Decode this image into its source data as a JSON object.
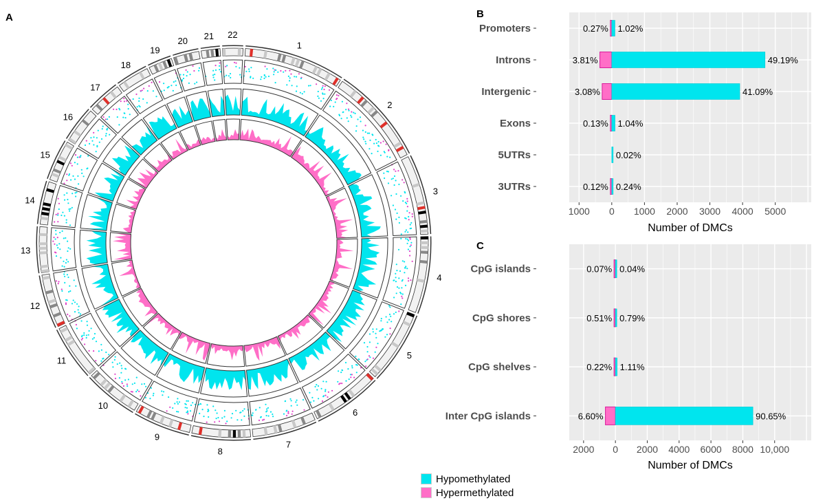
{
  "panel_labels": {
    "a": "A",
    "b": "B",
    "c": "C"
  },
  "colors": {
    "hypo": "#00e5ee",
    "hyper": "#ff6ec7",
    "hyper_dark": "#d81b9a",
    "panel_bg": "#ebebeb",
    "grid": "#ffffff"
  },
  "legend": [
    {
      "label": "Hypomethylated",
      "color": "#00e5ee"
    },
    {
      "label": "Hypermethylated",
      "color": "#ff6ec7"
    }
  ],
  "circos": {
    "chromosomes": [
      "1",
      "2",
      "3",
      "4",
      "5",
      "6",
      "7",
      "8",
      "9",
      "10",
      "11",
      "12",
      "13",
      "14",
      "15",
      "16",
      "17",
      "18",
      "19",
      "20",
      "21",
      "22"
    ],
    "sizes_mb": [
      249,
      243,
      198,
      191,
      182,
      171,
      159,
      146,
      141,
      136,
      135,
      133,
      114,
      107,
      102,
      90,
      83,
      80,
      59,
      64,
      47,
      51
    ]
  },
  "chart_data": [
    {
      "type": "bar",
      "orientation": "horizontal",
      "panel": "B",
      "categories": [
        "Promoters",
        "Introns",
        "Intergenic",
        "Exons",
        "5UTRs",
        "3UTRs"
      ],
      "xlabel": "Number of DMCs",
      "xticks": [
        "1000",
        "0",
        "1000",
        "2000",
        "3000",
        "4000",
        "5000"
      ],
      "xlim": [
        -1300,
        6100
      ],
      "series": [
        {
          "name": "Hypermethylated",
          "values": [
            26,
            363,
            293,
            12,
            0,
            11
          ],
          "labels": [
            "0.27%",
            "3.81%",
            "3.08%",
            "0.13%",
            "",
            "0.12%"
          ]
        },
        {
          "name": "Hypomethylated",
          "values": [
            97,
            4686,
            3914,
            99,
            2,
            23
          ],
          "labels": [
            "1.02%",
            "49.19%",
            "41.09%",
            "1.04%",
            "0.02%",
            "0.24%"
          ]
        }
      ]
    },
    {
      "type": "bar",
      "orientation": "horizontal",
      "panel": "C",
      "categories": [
        "CpG islands",
        "CpG shores",
        "CpG shelves",
        "Inter CpG islands"
      ],
      "xlabel": "Number of DMCs",
      "xticks": [
        "2000",
        "0",
        "2000",
        "4000",
        "6000",
        "8000",
        "10,000"
      ],
      "xlim": [
        -2900,
        12300
      ],
      "series": [
        {
          "name": "Hypermethylated",
          "values": [
            7,
            49,
            21,
            629
          ],
          "labels": [
            "0.07%",
            "0.51%",
            "0.22%",
            "6.60%"
          ]
        },
        {
          "name": "Hypomethylated",
          "values": [
            4,
            75,
            106,
            8635
          ],
          "labels": [
            "0.04%",
            "0.79%",
            "1.11%",
            "90.65%"
          ]
        }
      ]
    }
  ]
}
